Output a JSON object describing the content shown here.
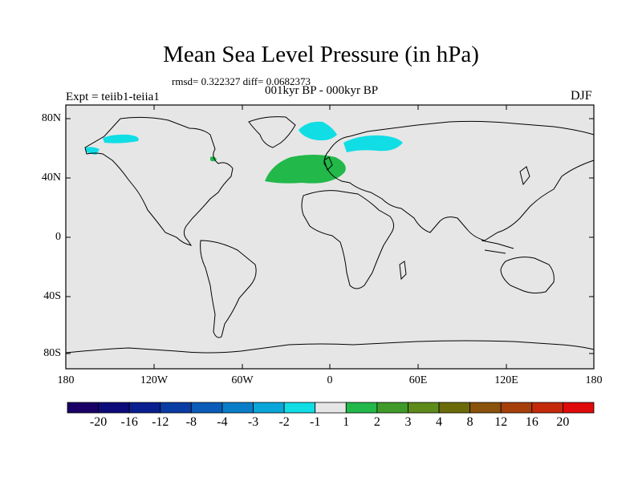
{
  "header": {
    "title": "Mean Sea Level Pressure (in hPa)",
    "stats": "rmsd= 0.322327 diff= 0.0682373",
    "period": "001kyr BP - 000kyr BP",
    "experiment": "Expt = teiib1-teiia1",
    "season": "DJF"
  },
  "axes": {
    "y_ticks": [
      "80N",
      "40N",
      "0",
      "40S",
      "80S"
    ],
    "x_ticks": [
      "180",
      "120W",
      "60W",
      "0",
      "60E",
      "120E",
      "180"
    ]
  },
  "colorbar": {
    "labels": [
      "-20",
      "-16",
      "-12",
      "-8",
      "-4",
      "-3",
      "-2",
      "-1",
      "1",
      "2",
      "3",
      "4",
      "8",
      "12",
      "16",
      "20"
    ],
    "colors": [
      "#1a0066",
      "#0d0b7a",
      "#0a1f8f",
      "#0a3da3",
      "#0a5cb8",
      "#0a7dc8",
      "#0aa6d9",
      "#11dde5",
      "#e6e6e6",
      "#22b84a",
      "#3f9a2a",
      "#5e8a1a",
      "#6b6b0a",
      "#8a520a",
      "#a63f0a",
      "#c42a0a",
      "#e00a0a"
    ]
  },
  "map": {
    "background": "#e6e6e6",
    "anomaly_regions": [
      {
        "category": "-2 to -1",
        "color": "#11dde5",
        "location": "Bering Sea / Alaska"
      },
      {
        "category": "-2 to -1",
        "color": "#11dde5",
        "location": "Greenland Sea"
      },
      {
        "category": "-2 to -1",
        "color": "#11dde5",
        "location": "Scandinavia / Barents"
      },
      {
        "category": "1 to 2",
        "color": "#22b84a",
        "location": "North Atlantic / Western Europe"
      },
      {
        "category": "1 to 2",
        "color": "#22b84a",
        "location": "Hudson Bay"
      }
    ]
  }
}
